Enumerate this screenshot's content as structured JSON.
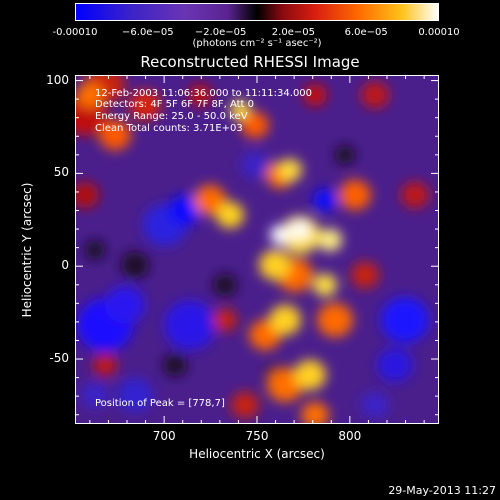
{
  "colorbar": {
    "tick_labels": [
      "-0.00010",
      "−6.0e−05",
      "−2.0e−05",
      "2.0e−05",
      "6.0e−05",
      "0.00010"
    ],
    "units": "(photons cm⁻² s⁻¹ asec⁻²)",
    "colors": [
      "#0000ff",
      "#5a2bb0",
      "#7a38a8",
      "#000000",
      "#c01010",
      "#ff6a00",
      "#ffd21a",
      "#ffffff"
    ]
  },
  "chart_data": {
    "type": "heatmap",
    "title": "Reconstructed RHESSI Image",
    "xlabel": "Heliocentric X (arcsec)",
    "ylabel": "Heliocentric Y (arcsec)",
    "xlim": [
      652,
      848
    ],
    "ylim": [
      -85,
      103
    ],
    "x_ticks": [
      700,
      750,
      800
    ],
    "y_ticks": [
      100,
      50,
      0,
      -50
    ],
    "color_range": [
      -0.0001,
      0.0001
    ],
    "peak_position": [
      778,
      7
    ],
    "annotations": {
      "time_range": "12-Feb-2003 11:06:36.000 to 11:11:34.000",
      "detectors": "Detectors: 4F 5F 6F 7F 8F, Att 0",
      "energy_range": "Energy Range: 25.0 - 50.0 keV",
      "method_counts": "Clean    Total counts: 3.71E+03",
      "peak": "Position of Peak = [778,7]"
    }
  },
  "footer": {
    "date": "29-May-2013 11:27"
  }
}
